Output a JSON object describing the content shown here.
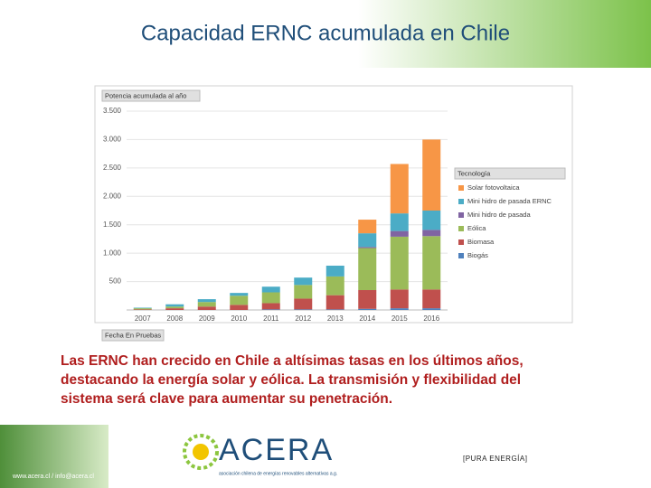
{
  "title": "Capacidad ERNC acumulada en Chile",
  "chart_data": {
    "type": "stacked-bar",
    "field_value": "Potencia acumulada al año",
    "field_legend": "Tecnología",
    "field_axis": "Fecha En Pruebas",
    "categories": [
      "2007",
      "2008",
      "2009",
      "2010",
      "2011",
      "2012",
      "2013",
      "2014",
      "2015",
      "2016"
    ],
    "series": [
      {
        "name": "Biogás",
        "color": "#4f81bd",
        "values": [
          0,
          0,
          0,
          0,
          10,
          10,
          10,
          20,
          30,
          30
        ]
      },
      {
        "name": "Biomasa",
        "color": "#c0504d",
        "values": [
          10,
          30,
          60,
          90,
          110,
          190,
          250,
          330,
          330,
          330
        ]
      },
      {
        "name": "Eólica",
        "color": "#9bbb59",
        "values": [
          20,
          30,
          80,
          160,
          190,
          240,
          330,
          740,
          930,
          940
        ]
      },
      {
        "name": "Mini hidro de pasada",
        "color": "#8064a2",
        "values": [
          0,
          0,
          0,
          0,
          0,
          0,
          0,
          20,
          100,
          110
        ]
      },
      {
        "name": "Mini hidro de pasada ERNC",
        "color": "#4bacc6",
        "values": [
          10,
          40,
          50,
          50,
          100,
          130,
          190,
          240,
          310,
          340
        ]
      },
      {
        "name": "Solar fotovoltaica",
        "color": "#f79646",
        "values": [
          0,
          0,
          0,
          0,
          0,
          0,
          0,
          240,
          870,
          1250
        ]
      }
    ],
    "ylim": [
      0,
      3500
    ],
    "yticks": [
      500,
      {
        "value": 1000,
        "label": "1.000"
      },
      {
        "value": 1500,
        "label": "1.500"
      },
      {
        "value": 2000,
        "label": "2.000"
      },
      {
        "value": 2500,
        "label": "2.500"
      },
      {
        "value": 3000,
        "label": "3.000"
      },
      {
        "value": 3500,
        "label": "3.500"
      }
    ],
    "grid": true
  },
  "caption": [
    "Las ERNC han crecido en Chile a altísimas tasas en los últimos años,",
    "destacando la energía solar y eólica. La transmisión y flexibilidad del",
    "sistema será clave para aumentar su penetración."
  ],
  "footer": {
    "contact": "www.acera.cl / info@acera.cl",
    "brand": "ACERA",
    "tagline": "asociación chilena de energías renovables alternativas a.g.",
    "slogan": "[PURA ENERGÍA]"
  }
}
